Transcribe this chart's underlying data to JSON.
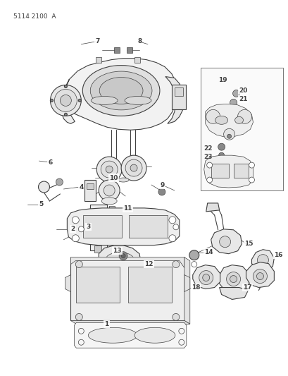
{
  "title": "5114 2100  A",
  "bg_color": "#ffffff",
  "lc": "#404040",
  "fig_width": 4.1,
  "fig_height": 5.33,
  "dpi": 100
}
